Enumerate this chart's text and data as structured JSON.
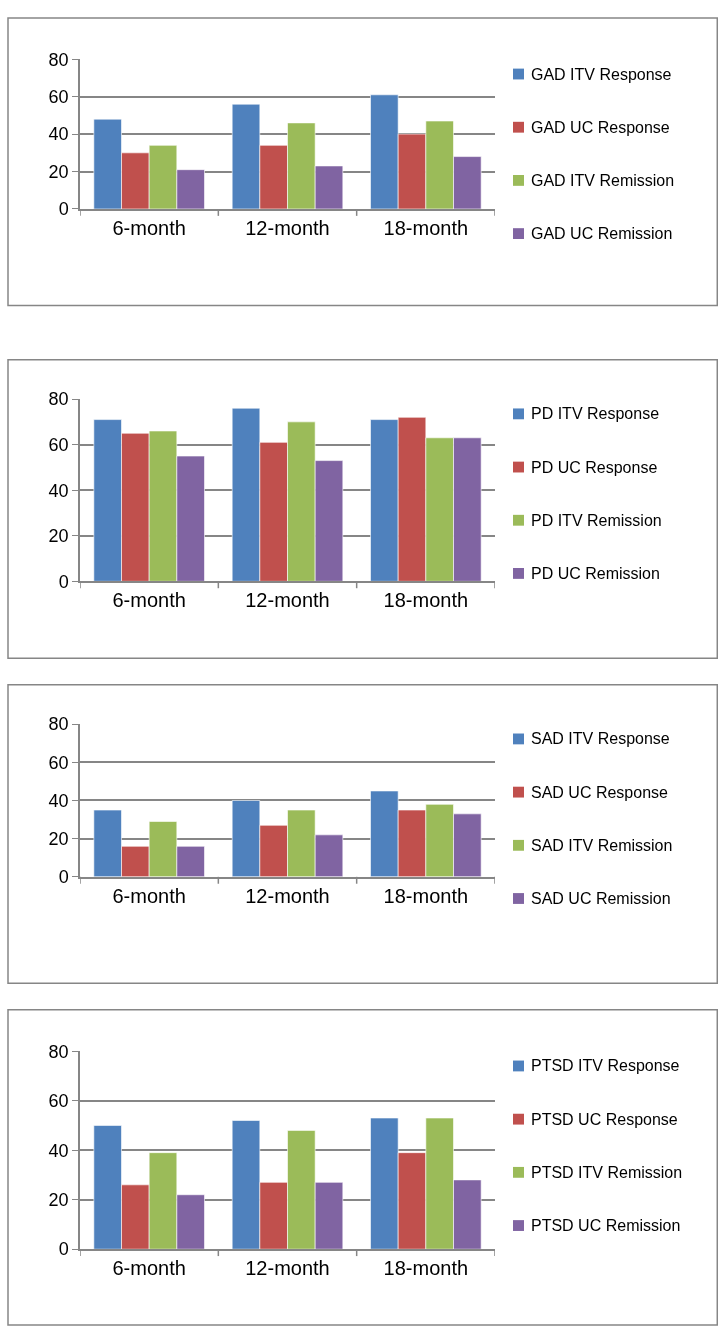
{
  "chart_data": [
    {
      "type": "bar",
      "categories": [
        "6-month",
        "12-month",
        "18-month"
      ],
      "ylim": [
        0,
        80
      ],
      "yticks": [
        0,
        20,
        40,
        60,
        80
      ],
      "grid": "y",
      "legend": "right",
      "series": [
        {
          "name": "GAD ITV Response",
          "color": "#4f81bd",
          "values": [
            48,
            56,
            61
          ]
        },
        {
          "name": "GAD UC Response",
          "color": "#c0504d",
          "values": [
            30,
            34,
            40
          ]
        },
        {
          "name": "GAD ITV Remission",
          "color": "#9bbb59",
          "values": [
            34,
            46,
            47
          ]
        },
        {
          "name": "GAD UC Remission",
          "color": "#8064a2",
          "values": [
            21,
            23,
            28
          ]
        }
      ]
    },
    {
      "type": "bar",
      "categories": [
        "6-month",
        "12-month",
        "18-month"
      ],
      "ylim": [
        0,
        80
      ],
      "yticks": [
        0,
        20,
        40,
        60,
        80
      ],
      "grid": "y",
      "legend": "right",
      "series": [
        {
          "name": "PD ITV Response",
          "color": "#4f81bd",
          "values": [
            71,
            76,
            71
          ]
        },
        {
          "name": "PD UC Response",
          "color": "#c0504d",
          "values": [
            65,
            61,
            72
          ]
        },
        {
          "name": "PD ITV Remission",
          "color": "#9bbb59",
          "values": [
            66,
            70,
            63
          ]
        },
        {
          "name": "PD UC Remission",
          "color": "#8064a2",
          "values": [
            55,
            53,
            63
          ]
        }
      ]
    },
    {
      "type": "bar",
      "categories": [
        "6-month",
        "12-month",
        "18-month"
      ],
      "ylim": [
        0,
        80
      ],
      "yticks": [
        0,
        20,
        40,
        60,
        80
      ],
      "grid": "y",
      "legend": "right",
      "series": [
        {
          "name": "SAD ITV Response",
          "color": "#4f81bd",
          "values": [
            35,
            40,
            45
          ]
        },
        {
          "name": "SAD UC Response",
          "color": "#c0504d",
          "values": [
            16,
            27,
            35
          ]
        },
        {
          "name": "SAD ITV Remission",
          "color": "#9bbb59",
          "values": [
            29,
            35,
            38
          ]
        },
        {
          "name": "SAD UC Remission",
          "color": "#8064a2",
          "values": [
            16,
            22,
            33
          ]
        }
      ]
    },
    {
      "type": "bar",
      "categories": [
        "6-month",
        "12-month",
        "18-month"
      ],
      "ylim": [
        0,
        80
      ],
      "yticks": [
        0,
        20,
        40,
        60,
        80
      ],
      "grid": "y",
      "legend": "right",
      "series": [
        {
          "name": "PTSD ITV Response",
          "color": "#4f81bd",
          "values": [
            50,
            52,
            53
          ]
        },
        {
          "name": "PTSD UC Response",
          "color": "#c0504d",
          "values": [
            26,
            27,
            39
          ]
        },
        {
          "name": "PTSD ITV Remission",
          "color": "#9bbb59",
          "values": [
            39,
            48,
            53
          ]
        },
        {
          "name": "PTSD UC Remission",
          "color": "#8064a2",
          "values": [
            22,
            27,
            28
          ]
        }
      ]
    }
  ]
}
